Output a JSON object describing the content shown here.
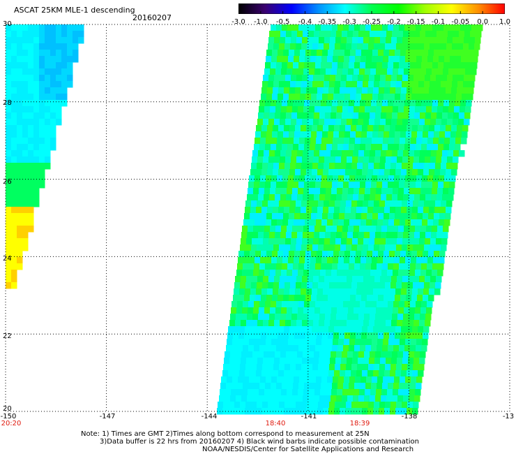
{
  "header": {
    "title": "ASCAT 25KM MLE-1 descending",
    "date": "20160207"
  },
  "colorbar": {
    "tick_labels": [
      "-3.0",
      "-1.0",
      "-0.5",
      "-0.4",
      "-0.35",
      "-0.3",
      "-0.25",
      "-0.2",
      "-0.15",
      "-0.1",
      "-0.05",
      "0.0",
      "1.0"
    ],
    "colors": [
      "#000000",
      "#3a0070",
      "#0000ff",
      "#0090ff",
      "#00ffff",
      "#00ff50",
      "#00ff00",
      "#a0ff00",
      "#ffff00",
      "#ff9000",
      "#ff0000"
    ]
  },
  "axes": {
    "lat_labels": [
      "30",
      "28",
      "26",
      "24",
      "22",
      "20"
    ],
    "lon_labels": [
      "-150",
      "-147",
      "-144",
      "-141",
      "-138",
      "-13"
    ],
    "time_labels": [
      {
        "text": "20:20",
        "lon": -150
      },
      {
        "text": "18:40",
        "lon": -142
      },
      {
        "text": "18:39",
        "lon": -139.5
      }
    ],
    "lat_range": [
      20,
      30
    ],
    "lon_range": [
      -150,
      -135
    ],
    "grid": "dotted"
  },
  "notes": {
    "line1": "Note: 1) Times are GMT 2)Times along bottom correspond to measurement at 25N",
    "line2": "3)Data buffer is 22 hrs from 20160207 4) Black wind barbs indicate possible contamination",
    "line3": "NOAA/NESDIS/Center for Satellite Applications and Research"
  }
}
